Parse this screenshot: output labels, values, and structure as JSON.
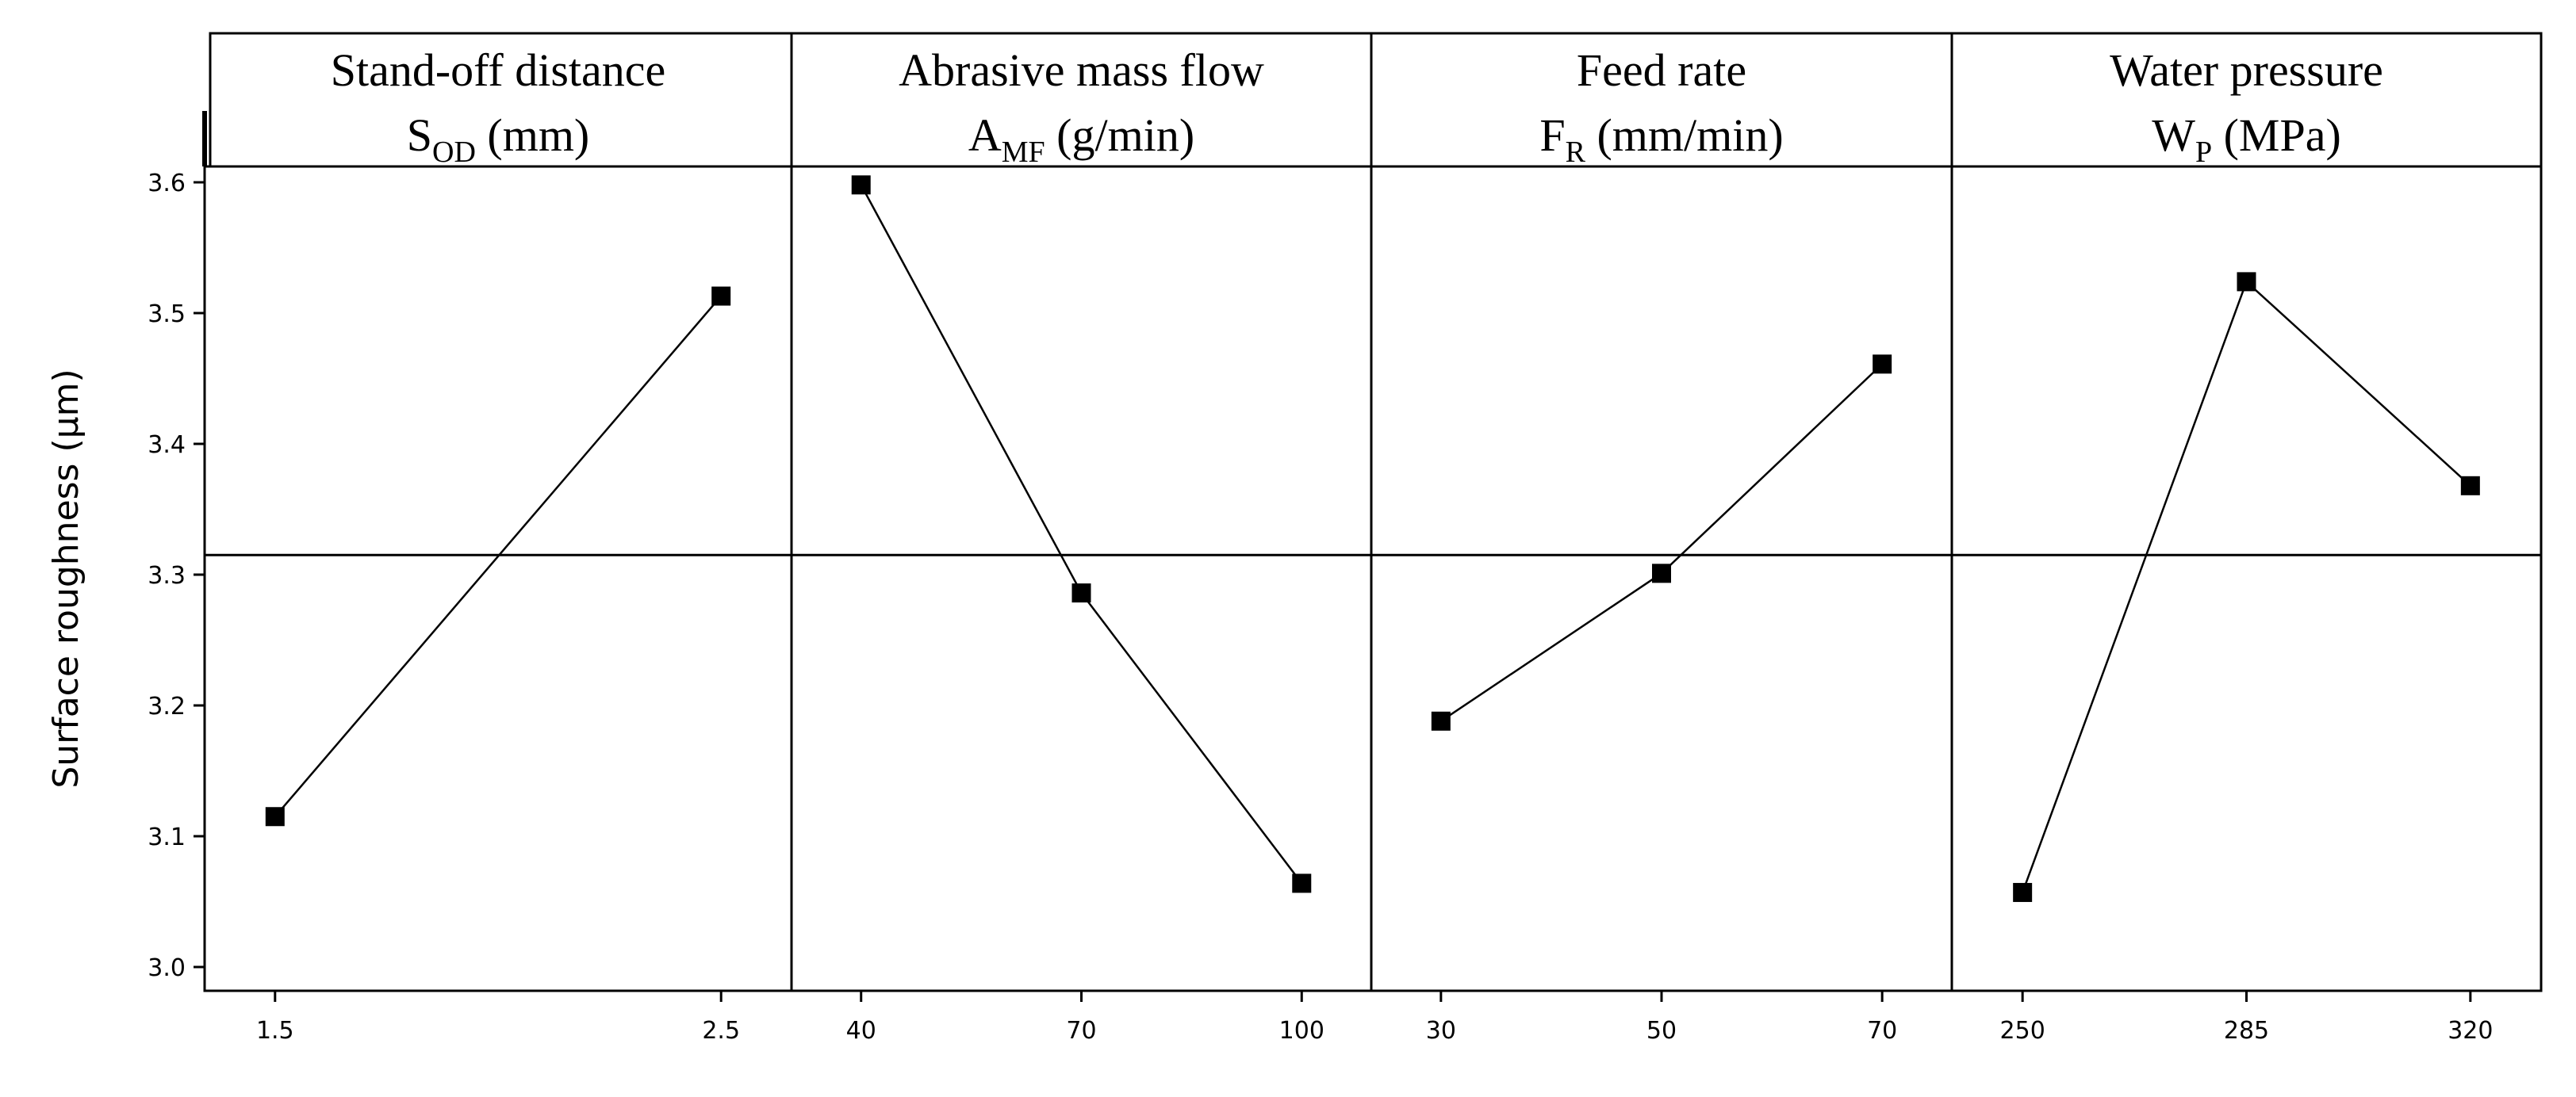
{
  "chart_data": {
    "type": "line",
    "title": "",
    "ylabel": "Surface roughness  (µm)",
    "ylim": [
      3.0,
      3.6
    ],
    "yticks": [
      "3.0",
      "3.1",
      "3.2",
      "3.3",
      "3.4",
      "3.5",
      "3.6"
    ],
    "mean_line": 3.315,
    "grid": false,
    "colors": {
      "line": "#000000",
      "marker": "#000000",
      "frame": "#000000",
      "background": "#ffffff"
    },
    "panels": [
      {
        "header_line1": "Stand-off distance",
        "header_main": "S",
        "header_sub": "OD",
        "header_unit": " (mm)",
        "categories": [
          "1.5",
          "2.5"
        ],
        "values": [
          3.115,
          3.513
        ]
      },
      {
        "header_line1": "Abrasive mass flow",
        "header_main": "A",
        "header_sub": "MF",
        "header_unit": " (g/min)",
        "categories": [
          "40",
          "70",
          "100"
        ],
        "values": [
          3.598,
          3.286,
          3.064
        ]
      },
      {
        "header_line1": "Feed rate",
        "header_main": "F",
        "header_sub": "R",
        "header_unit": " (mm/min)",
        "categories": [
          "30",
          "50",
          "70"
        ],
        "values": [
          3.188,
          3.301,
          3.461
        ]
      },
      {
        "header_line1": "Water pressure",
        "header_main": "W",
        "header_sub": "P",
        "header_unit": " (MPa)",
        "categories": [
          "250",
          "285",
          "320"
        ],
        "values": [
          3.057,
          3.524,
          3.368
        ]
      }
    ]
  }
}
